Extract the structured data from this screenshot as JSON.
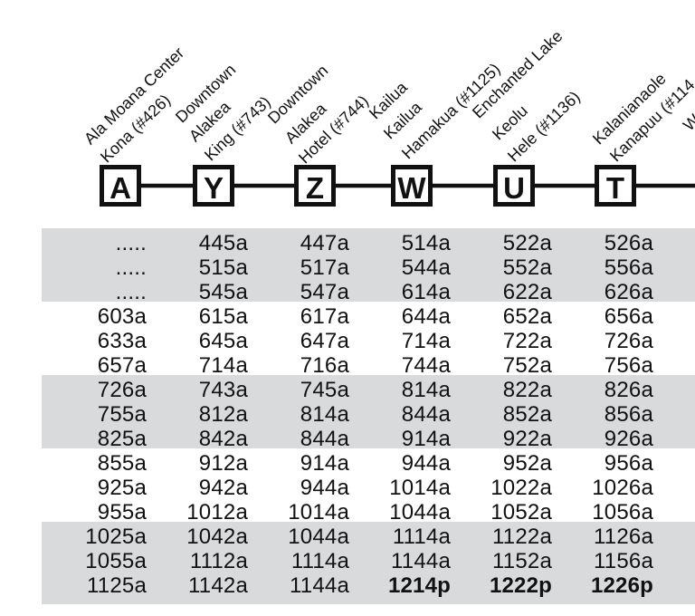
{
  "stops": [
    {
      "letter": "A",
      "lines": [
        "Ala Moana Center",
        "Kona (#426)"
      ]
    },
    {
      "letter": "Y",
      "lines": [
        "Downtown",
        "Alakea",
        "King (#743)"
      ]
    },
    {
      "letter": "Z",
      "lines": [
        "Downtown",
        "Alakea",
        "Hotel (#744)"
      ]
    },
    {
      "letter": "W",
      "lines": [
        "Kailua",
        "Kailua",
        "Hamakua (#1125)"
      ]
    },
    {
      "letter": "U",
      "lines": [
        "Enchanted Lake",
        "Keolu",
        "Hele (#1136)"
      ]
    },
    {
      "letter": "T",
      "lines": [
        "Kalanianaole",
        "Kanapuu (#114"
      ]
    },
    {
      "letter": "",
      "lines": [
        "W"
      ]
    }
  ],
  "rows": [
    [
      ".....",
      "445a",
      "447a",
      "514a",
      "522a",
      "526a"
    ],
    [
      ".....",
      "515a",
      "517a",
      "544a",
      "552a",
      "556a"
    ],
    [
      ".....",
      "545a",
      "547a",
      "614a",
      "622a",
      "626a"
    ],
    [
      "603a",
      "615a",
      "617a",
      "644a",
      "652a",
      "656a"
    ],
    [
      "633a",
      "645a",
      "647a",
      "714a",
      "722a",
      "726a"
    ],
    [
      "657a",
      "714a",
      "716a",
      "744a",
      "752a",
      "756a"
    ],
    [
      "726a",
      "743a",
      "745a",
      "814a",
      "822a",
      "826a"
    ],
    [
      "755a",
      "812a",
      "814a",
      "844a",
      "852a",
      "856a"
    ],
    [
      "825a",
      "842a",
      "844a",
      "914a",
      "922a",
      "926a"
    ],
    [
      "855a",
      "912a",
      "914a",
      "944a",
      "952a",
      "956a"
    ],
    [
      "925a",
      "942a",
      "944a",
      "1014a",
      "1022a",
      "1026a"
    ],
    [
      "955a",
      "1012a",
      "1014a",
      "1044a",
      "1052a",
      "1056a"
    ],
    [
      "1025a",
      "1042a",
      "1044a",
      "1114a",
      "1122a",
      "1126a"
    ],
    [
      "1055a",
      "1112a",
      "1114a",
      "1144a",
      "1152a",
      "1156a"
    ],
    [
      "1125a",
      "1142a",
      "1144a",
      "1214p",
      "1222p",
      "1226p"
    ]
  ],
  "bold_cells": [
    [
      14,
      3
    ],
    [
      14,
      4
    ],
    [
      14,
      5
    ]
  ],
  "colors": {
    "shade": "#d9dadb",
    "ink": "#111111"
  }
}
